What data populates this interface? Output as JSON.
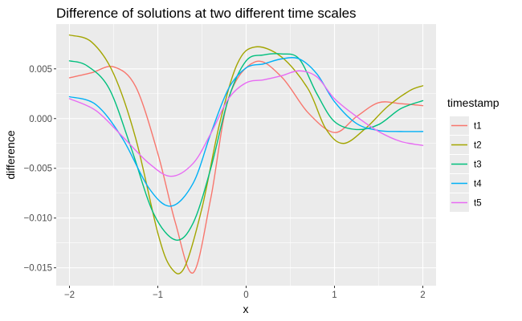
{
  "chart_data": {
    "type": "line",
    "title": "Difference of solutions at two different time scales",
    "xlabel": "x",
    "ylabel": "difference",
    "xlim": [
      -2.15,
      2.15
    ],
    "ylim": [
      -0.0168,
      0.0095
    ],
    "xticks": [
      -2,
      -1,
      0,
      1,
      2
    ],
    "xtick_labels": [
      "−2",
      "−1",
      "0",
      "1",
      "2"
    ],
    "yticks": [
      -0.015,
      -0.01,
      -0.005,
      0.0,
      0.005
    ],
    "ytick_labels": [
      "−0.015",
      "−0.010",
      "−0.005",
      "0.000",
      "0.005"
    ],
    "grid": true,
    "legend": {
      "title": "timestamp",
      "position": "right"
    },
    "series": [
      {
        "name": "t1",
        "color": "#F8766D",
        "x": [
          -2.0,
          -1.75,
          -1.5,
          -1.25,
          -1.0,
          -0.8,
          -0.6,
          -0.4,
          -0.2,
          0.1,
          0.4,
          0.7,
          1.0,
          1.25,
          1.5,
          1.75,
          2.0
        ],
        "y": [
          0.0041,
          0.0046,
          0.0052,
          0.0032,
          -0.0035,
          -0.0105,
          -0.0155,
          -0.008,
          0.002,
          0.0057,
          0.0042,
          0.0006,
          -0.0014,
          0.0002,
          0.0016,
          0.0015,
          0.0013
        ]
      },
      {
        "name": "t2",
        "color": "#A3A500",
        "x": [
          -2.0,
          -1.75,
          -1.5,
          -1.25,
          -1.0,
          -0.85,
          -0.7,
          -0.5,
          -0.3,
          -0.1,
          0.1,
          0.4,
          0.7,
          0.9,
          1.1,
          1.35,
          1.6,
          1.85,
          2.0
        ],
        "y": [
          0.0084,
          0.0077,
          0.0045,
          -0.002,
          -0.0115,
          -0.015,
          -0.015,
          -0.009,
          -0.0005,
          0.0055,
          0.0072,
          0.0062,
          0.003,
          -0.001,
          -0.0025,
          -0.001,
          0.0012,
          0.0028,
          0.0033
        ]
      },
      {
        "name": "t3",
        "color": "#00BF7D",
        "x": [
          -2.0,
          -1.8,
          -1.55,
          -1.3,
          -1.05,
          -0.8,
          -0.6,
          -0.4,
          -0.2,
          0.0,
          0.2,
          0.4,
          0.6,
          0.8,
          1.0,
          1.25,
          1.5,
          1.75,
          2.0
        ],
        "y": [
          0.0058,
          0.0053,
          0.003,
          -0.003,
          -0.0095,
          -0.0122,
          -0.0105,
          -0.005,
          0.002,
          0.0058,
          0.0064,
          0.0065,
          0.006,
          0.0025,
          -0.0003,
          -0.0011,
          -0.0006,
          0.001,
          0.0018
        ]
      },
      {
        "name": "t4",
        "color": "#00B0F6",
        "x": [
          -2.0,
          -1.7,
          -1.4,
          -1.1,
          -0.85,
          -0.6,
          -0.4,
          -0.2,
          0.0,
          0.2,
          0.4,
          0.6,
          0.8,
          1.0,
          1.25,
          1.5,
          1.75,
          2.0
        ],
        "y": [
          0.0022,
          0.0014,
          -0.002,
          -0.007,
          -0.0088,
          -0.0065,
          -0.0015,
          0.003,
          0.0051,
          0.0055,
          0.006,
          0.006,
          0.0045,
          0.0017,
          -0.0005,
          -0.0012,
          -0.0013,
          -0.0013
        ]
      },
      {
        "name": "t5",
        "color": "#E76BF3",
        "x": [
          -2.0,
          -1.7,
          -1.4,
          -1.1,
          -0.85,
          -0.6,
          -0.4,
          -0.2,
          0.0,
          0.2,
          0.4,
          0.6,
          0.8,
          1.0,
          1.25,
          1.5,
          1.75,
          2.0
        ],
        "y": [
          0.002,
          0.0008,
          -0.0018,
          -0.0045,
          -0.0058,
          -0.0045,
          -0.0015,
          0.002,
          0.0036,
          0.0039,
          0.0043,
          0.0048,
          0.0042,
          0.002,
          0.0002,
          -0.0013,
          -0.0023,
          -0.0027
        ]
      }
    ]
  }
}
